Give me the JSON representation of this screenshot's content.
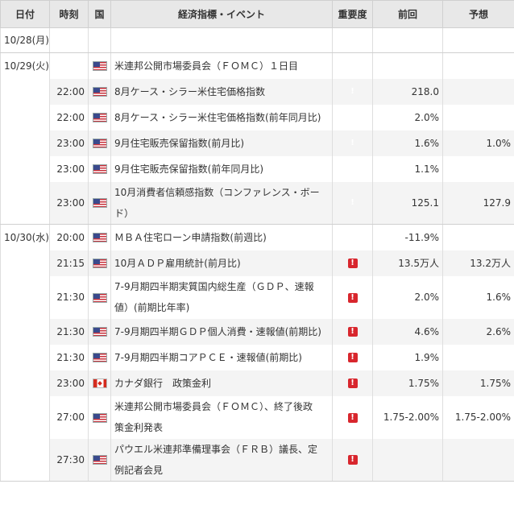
{
  "header": {
    "date": "日付",
    "time": "時刻",
    "country": "国",
    "event": "経済指標・イベント",
    "importance": "重要度",
    "previous": "前回",
    "forecast": "予想"
  },
  "importance_symbol": "!",
  "colors": {
    "medium": "#f5a300",
    "high": "#d8262d"
  },
  "days": [
    {
      "date": "10/28(月)",
      "events": []
    },
    {
      "date": "10/29(火)",
      "events": [
        {
          "time": "",
          "flag": "us",
          "flag_icon": "us-flag-icon",
          "event": "米連邦公開市場委員会（ＦＯＭＣ）１日目",
          "importance": "medium",
          "previous": "",
          "forecast": ""
        },
        {
          "time": "22:00",
          "flag": "us",
          "flag_icon": "us-flag-icon",
          "event": "8月ケース・シラー米住宅価格指数",
          "importance": "medium",
          "previous": "218.0",
          "forecast": ""
        },
        {
          "time": "22:00",
          "flag": "us",
          "flag_icon": "us-flag-icon",
          "event": "8月ケース・シラー米住宅価格指数(前年同月比)",
          "importance": "medium",
          "previous": "2.0%",
          "forecast": ""
        },
        {
          "time": "23:00",
          "flag": "us",
          "flag_icon": "us-flag-icon",
          "event": "9月住宅販売保留指数(前月比)",
          "importance": "medium",
          "previous": "1.6%",
          "forecast": "1.0%"
        },
        {
          "time": "23:00",
          "flag": "us",
          "flag_icon": "us-flag-icon",
          "event": "9月住宅販売保留指数(前年同月比)",
          "importance": "medium",
          "previous": "1.1%",
          "forecast": ""
        },
        {
          "time": "23:00",
          "flag": "us",
          "flag_icon": "us-flag-icon",
          "event_lines": [
            "10月消費者信頼感指数（コンファレンス・ボー",
            "ド）"
          ],
          "importance": "medium",
          "previous": "125.1",
          "forecast": "127.9"
        }
      ]
    },
    {
      "date": "10/30(水)",
      "events": [
        {
          "time": "20:00",
          "flag": "us",
          "flag_icon": "us-flag-icon",
          "event": "ＭＢＡ住宅ローン申請指数(前週比)",
          "importance": "medium",
          "previous": "-11.9%",
          "forecast": ""
        },
        {
          "time": "21:15",
          "flag": "us",
          "flag_icon": "us-flag-icon",
          "event": "10月ＡＤＰ雇用統計(前月比)",
          "importance": "high",
          "previous": "13.5万人",
          "forecast": "13.2万人"
        },
        {
          "time": "21:30",
          "flag": "us",
          "flag_icon": "us-flag-icon",
          "event_lines": [
            "7-9月期四半期実質国内総生産（ＧＤＰ、速報",
            "値）(前期比年率)"
          ],
          "importance": "high",
          "previous": "2.0%",
          "forecast": "1.6%"
        },
        {
          "time": "21:30",
          "flag": "us",
          "flag_icon": "us-flag-icon",
          "event": "7-9月期四半期ＧＤＰ個人消費・速報値(前期比)",
          "importance": "high",
          "previous": "4.6%",
          "forecast": "2.6%"
        },
        {
          "time": "21:30",
          "flag": "us",
          "flag_icon": "us-flag-icon",
          "event": "7-9月期四半期コアＰＣＥ・速報値(前期比)",
          "importance": "high",
          "previous": "1.9%",
          "forecast": ""
        },
        {
          "time": "23:00",
          "flag": "ca",
          "flag_icon": "canada-flag-icon",
          "event": "カナダ銀行　政策金利",
          "importance": "high",
          "previous": "1.75%",
          "forecast": "1.75%"
        },
        {
          "time": "27:00",
          "flag": "us",
          "flag_icon": "us-flag-icon",
          "event_lines": [
            "米連邦公開市場委員会（ＦＯＭＣ）、終了後政",
            "策金利発表"
          ],
          "importance": "high",
          "previous": "1.75-2.00%",
          "forecast": "1.75-2.00%"
        },
        {
          "time": "27:30",
          "flag": "us",
          "flag_icon": "us-flag-icon",
          "event_lines": [
            "パウエル米連邦準備理事会（ＦＲＢ）議長、定",
            "例記者会見"
          ],
          "importance": "high",
          "previous": "",
          "forecast": ""
        }
      ]
    }
  ]
}
